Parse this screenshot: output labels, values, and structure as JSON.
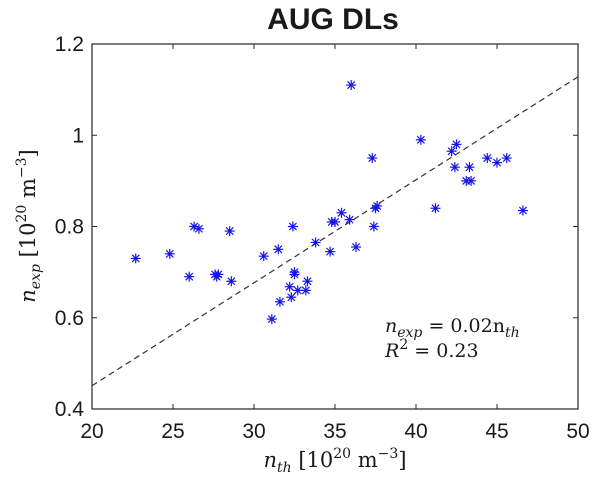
{
  "chart_data": {
    "type": "scatter",
    "title": "AUG DLs",
    "xlabel": {
      "var": "n",
      "sub": "th",
      "unit_pre": " [10",
      "unit_exp": "20",
      "unit_mid": " m",
      "unit_exp2": "−3",
      "unit_post": "]"
    },
    "ylabel": {
      "var": "n",
      "sub": "exp",
      "unit_pre": " [10",
      "unit_exp": "20",
      "unit_mid": " m",
      "unit_exp2": "−3",
      "unit_post": "]"
    },
    "xlim": [
      20,
      50
    ],
    "ylim": [
      0.4,
      1.2
    ],
    "xticks": [
      "20",
      "25",
      "30",
      "35",
      "40",
      "45",
      "50"
    ],
    "yticks": [
      "0.4",
      "0.6",
      "0.8",
      "1",
      "1.2"
    ],
    "grid": false,
    "marker": "*",
    "marker_color": "#1414e6",
    "fit_line": {
      "style": "dashed",
      "color": "#333333",
      "points": [
        [
          20,
          0.451
        ],
        [
          50,
          1.128
        ]
      ]
    },
    "annotation": {
      "eq_lhs": "n",
      "eq_lhs_sub": "exp",
      "eq_mid": " = 0.02n",
      "eq_rhs_sub": "th",
      "r2_lhs": "R",
      "r2_sup": "2",
      "r2_rhs": " = 0.23"
    },
    "points": [
      [
        22.7,
        0.73
      ],
      [
        24.8,
        0.74
      ],
      [
        26.0,
        0.69
      ],
      [
        26.3,
        0.8
      ],
      [
        26.6,
        0.795
      ],
      [
        27.6,
        0.695
      ],
      [
        27.7,
        0.69
      ],
      [
        27.8,
        0.695
      ],
      [
        28.5,
        0.79
      ],
      [
        28.6,
        0.68
      ],
      [
        30.6,
        0.735
      ],
      [
        31.1,
        0.597
      ],
      [
        31.5,
        0.75
      ],
      [
        31.6,
        0.635
      ],
      [
        32.2,
        0.668
      ],
      [
        32.3,
        0.645
      ],
      [
        32.4,
        0.8
      ],
      [
        32.5,
        0.7
      ],
      [
        32.5,
        0.695
      ],
      [
        32.7,
        0.66
      ],
      [
        33.2,
        0.66
      ],
      [
        33.3,
        0.68
      ],
      [
        33.8,
        0.765
      ],
      [
        34.7,
        0.745
      ],
      [
        34.8,
        0.81
      ],
      [
        35.0,
        0.81
      ],
      [
        35.4,
        0.83
      ],
      [
        35.9,
        0.815
      ],
      [
        36.0,
        1.11
      ],
      [
        36.3,
        0.755
      ],
      [
        37.3,
        0.95
      ],
      [
        37.4,
        0.8
      ],
      [
        37.5,
        0.84
      ],
      [
        37.6,
        0.845
      ],
      [
        40.3,
        0.99
      ],
      [
        41.2,
        0.84
      ],
      [
        42.2,
        0.965
      ],
      [
        42.4,
        0.93
      ],
      [
        42.5,
        0.98
      ],
      [
        43.1,
        0.9
      ],
      [
        43.3,
        0.93
      ],
      [
        43.4,
        0.9
      ],
      [
        44.4,
        0.95
      ],
      [
        45.0,
        0.94
      ],
      [
        45.6,
        0.95
      ],
      [
        46.6,
        0.835
      ]
    ]
  }
}
